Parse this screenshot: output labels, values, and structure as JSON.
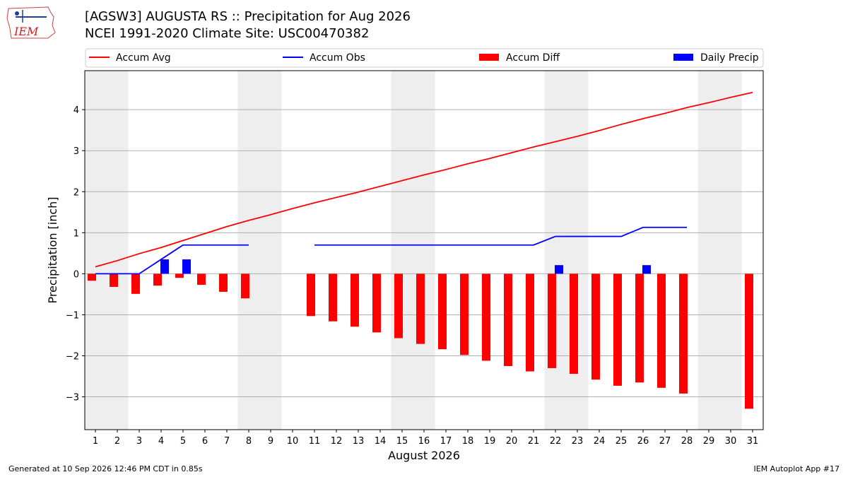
{
  "header": {
    "title_line1": "[AGSW3] AUGUSTA RS :: Precipitation for Aug 2026",
    "title_line2": "NCEI 1991-2020 Climate Site: USC00470382",
    "logo_text": "IEM"
  },
  "footer": {
    "generated": "Generated at 10 Sep 2026 12:46 PM CDT in 0.85s",
    "app": "IEM Autoplot App #17"
  },
  "colors": {
    "accum_avg": "#ff0000",
    "accum_obs": "#0000ff",
    "accum_diff": "#ff0000",
    "daily_precip": "#0000ff",
    "weekend_shade": "#eeeeee",
    "grid": "#b0b0b0"
  },
  "chart_data": {
    "type": "bar",
    "xlabel": "August 2026",
    "ylabel": "Precipitation [inch]",
    "ylim": [
      -3.8,
      4.95
    ],
    "yticks": [
      4,
      3,
      2,
      1,
      0,
      -1,
      -2,
      -3
    ],
    "ytick_labels": [
      "4",
      "3",
      "2",
      "1",
      "0",
      "−1",
      "−2",
      "−3"
    ],
    "days": [
      1,
      2,
      3,
      4,
      5,
      6,
      7,
      8,
      9,
      10,
      11,
      12,
      13,
      14,
      15,
      16,
      17,
      18,
      19,
      20,
      21,
      22,
      23,
      24,
      25,
      26,
      27,
      28,
      29,
      30,
      31
    ],
    "weekend_days": [
      1,
      2,
      8,
      9,
      15,
      16,
      22,
      23,
      29,
      30
    ],
    "grid": "horizontal",
    "legend_position": "top",
    "series": [
      {
        "name": "Accum Avg",
        "kind": "line",
        "days": [
          1,
          2,
          3,
          4,
          5,
          6,
          7,
          8,
          9,
          10,
          11,
          12,
          13,
          14,
          15,
          16,
          17,
          18,
          19,
          20,
          21,
          22,
          23,
          24,
          25,
          26,
          27,
          28,
          29,
          30,
          31
        ],
        "values": [
          0.17,
          0.32,
          0.49,
          0.64,
          0.81,
          0.98,
          1.15,
          1.3,
          1.44,
          1.59,
          1.73,
          1.86,
          1.99,
          2.13,
          2.27,
          2.41,
          2.54,
          2.68,
          2.81,
          2.95,
          3.09,
          3.22,
          3.35,
          3.49,
          3.64,
          3.78,
          3.91,
          4.05,
          4.17,
          4.3,
          4.42
        ]
      },
      {
        "name": "Accum Obs",
        "kind": "step",
        "segments": [
          {
            "days": [
              1,
              2,
              3,
              4,
              5,
              6,
              7,
              8
            ],
            "values": [
              0,
              0,
              0,
              0.35,
              0.7,
              0.7,
              0.7,
              0.7
            ]
          },
          {
            "days": [
              11,
              12,
              13,
              14,
              15,
              16,
              17,
              18,
              19,
              20,
              21,
              22,
              23,
              24,
              25,
              26,
              27,
              28
            ],
            "values": [
              0.7,
              0.7,
              0.7,
              0.7,
              0.7,
              0.7,
              0.7,
              0.7,
              0.7,
              0.7,
              0.7,
              0.91,
              0.91,
              0.91,
              0.91,
              1.13,
              1.13,
              1.13
            ]
          }
        ]
      },
      {
        "name": "Accum Diff",
        "kind": "bar",
        "days": [
          1,
          2,
          3,
          4,
          5,
          6,
          7,
          8,
          11,
          12,
          13,
          14,
          15,
          16,
          17,
          18,
          19,
          20,
          21,
          22,
          23,
          24,
          25,
          26,
          27,
          28,
          31
        ],
        "values": [
          -0.17,
          -0.32,
          -0.49,
          -0.29,
          -0.1,
          -0.27,
          -0.44,
          -0.6,
          -1.03,
          -1.16,
          -1.29,
          -1.43,
          -1.57,
          -1.71,
          -1.84,
          -1.98,
          -2.12,
          -2.25,
          -2.38,
          -2.3,
          -2.44,
          -2.58,
          -2.73,
          -2.65,
          -2.78,
          -2.92,
          -3.29
        ]
      },
      {
        "name": "Daily Precip",
        "kind": "bar",
        "days": [
          4,
          5,
          22,
          26
        ],
        "values": [
          0.35,
          0.35,
          0.21,
          0.21
        ]
      }
    ]
  }
}
